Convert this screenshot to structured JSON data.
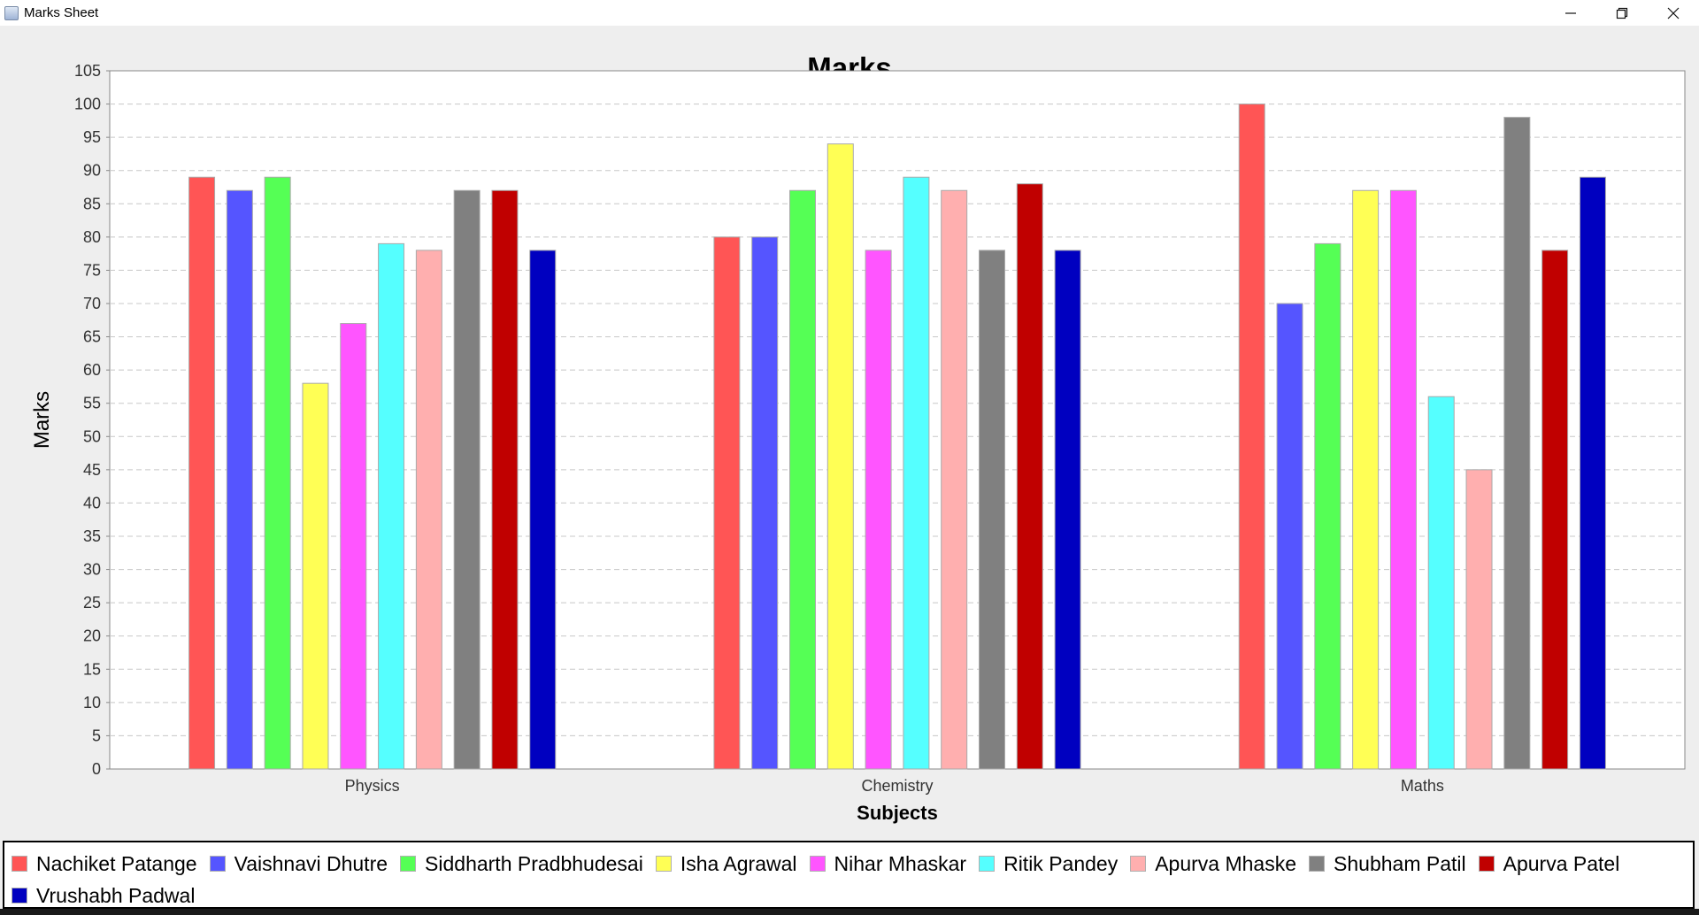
{
  "window": {
    "title": "Marks Sheet",
    "controls": [
      "minimize",
      "restore",
      "close"
    ]
  },
  "chart_data": {
    "type": "bar",
    "title": "Marks",
    "xlabel": "Subjects",
    "ylabel": "Marks",
    "ylim": [
      0,
      105
    ],
    "ytick_step": 5,
    "grid": true,
    "legend_position": "bottom",
    "categories": [
      "Physics",
      "Chemistry",
      "Maths"
    ],
    "series": [
      {
        "name": "Nachiket Patange",
        "color": "#ff5555",
        "values": [
          89,
          80,
          100
        ]
      },
      {
        "name": "Vaishnavi Dhutre",
        "color": "#5555ff",
        "values": [
          87,
          80,
          70
        ]
      },
      {
        "name": "Siddharth Pradbhudesai",
        "color": "#55ff55",
        "values": [
          89,
          87,
          79
        ]
      },
      {
        "name": "Isha Agrawal",
        "color": "#ffff55",
        "values": [
          58,
          94,
          87
        ]
      },
      {
        "name": "Nihar Mhaskar",
        "color": "#ff55ff",
        "values": [
          67,
          78,
          87
        ]
      },
      {
        "name": "Ritik Pandey",
        "color": "#55ffff",
        "values": [
          79,
          89,
          56
        ]
      },
      {
        "name": "Apurva Mhaske",
        "color": "#ffafaf",
        "values": [
          78,
          87,
          45
        ]
      },
      {
        "name": "Shubham Patil",
        "color": "#808080",
        "values": [
          87,
          78,
          98
        ]
      },
      {
        "name": "Apurva Patel",
        "color": "#c00000",
        "values": [
          87,
          88,
          78
        ]
      },
      {
        "name": "Vrushabh Padwal",
        "color": "#0000c0",
        "values": [
          78,
          78,
          89
        ]
      }
    ]
  }
}
